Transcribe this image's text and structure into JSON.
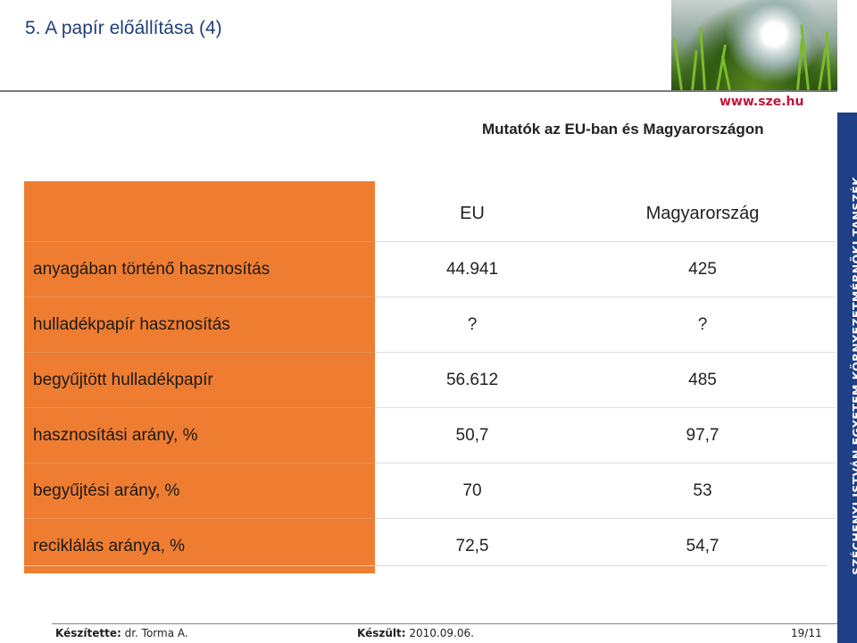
{
  "slide": {
    "title": "5. A papír előállítása (4)",
    "subtitle": "Mutatók az EU-ban és Magyarországon"
  },
  "logo": {
    "url": "www.sze.hu"
  },
  "side_band": {
    "text": "SZÉCHENYI ISTVÁN EGYETEM KÖRNYEZETMÉRNÖKI TANSZÉK"
  },
  "table": {
    "headers": {
      "label": "",
      "eu": "EU",
      "hu": "Magyarország"
    },
    "rows": [
      {
        "label": "anyagában történő hasznosítás",
        "eu": "44.941",
        "hu": "425"
      },
      {
        "label": "hulladékpapír hasznosítás",
        "eu": "?",
        "hu": "?"
      },
      {
        "label": "begyűjtött hulladékpapír",
        "eu": "56.612",
        "hu": "485"
      },
      {
        "label": "hasznosítási arány, %",
        "eu": "50,7",
        "hu": "97,7"
      },
      {
        "label": "begyűjtési arány, %",
        "eu": "70",
        "hu": "53"
      },
      {
        "label": "reciklálás aránya, %",
        "eu": "72,5",
        "hu": "54,7"
      }
    ]
  },
  "footer": {
    "author_label": "Készítette:",
    "author": "dr. Torma A.",
    "date_label": "Készült:",
    "date": "2010.09.06.",
    "page": "19/11"
  },
  "colors": {
    "accent": "#ef7d31",
    "band": "#1f3f86",
    "title": "#1f3f7a",
    "url": "#c0163a"
  }
}
